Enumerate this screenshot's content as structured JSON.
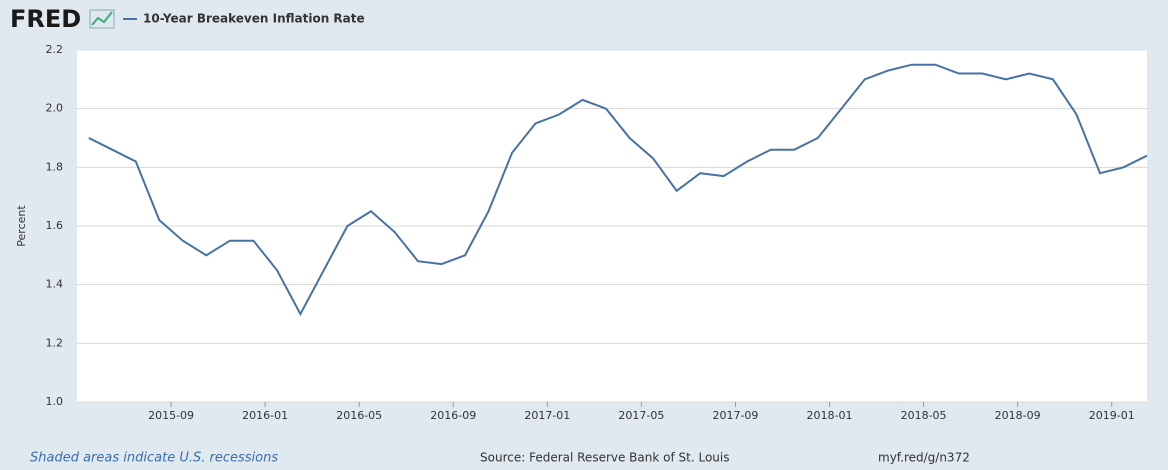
{
  "brand": "FRED",
  "chart_data": {
    "type": "line",
    "y_label": "Percent",
    "x": [
      "2015-05",
      "2015-06",
      "2015-07",
      "2015-08",
      "2015-09",
      "2015-10",
      "2015-11",
      "2015-12",
      "2016-01",
      "2016-02",
      "2016-03",
      "2016-04",
      "2016-05",
      "2016-06",
      "2016-07",
      "2016-08",
      "2016-09",
      "2016-10",
      "2016-11",
      "2016-12",
      "2017-01",
      "2017-02",
      "2017-03",
      "2017-04",
      "2017-05",
      "2017-06",
      "2017-07",
      "2017-08",
      "2017-09",
      "2017-10",
      "2017-11",
      "2017-12",
      "2018-01",
      "2018-02",
      "2018-03",
      "2018-04",
      "2018-05",
      "2018-06",
      "2018-07",
      "2018-08",
      "2018-09",
      "2018-10",
      "2018-11",
      "2018-12",
      "2019-01",
      "2019-02"
    ],
    "series": [
      {
        "name": "10-Year Breakeven Inflation Rate",
        "color": "#4572a7",
        "values": [
          1.9,
          1.86,
          1.82,
          1.62,
          1.55,
          1.5,
          1.55,
          1.55,
          1.45,
          1.3,
          1.45,
          1.6,
          1.65,
          1.58,
          1.48,
          1.47,
          1.5,
          1.65,
          1.85,
          1.95,
          1.98,
          2.03,
          2.0,
          1.9,
          1.83,
          1.72,
          1.78,
          1.77,
          1.82,
          1.86,
          1.86,
          1.9,
          2.0,
          2.1,
          2.13,
          2.15,
          2.15,
          2.12,
          2.12,
          2.1,
          2.12,
          2.1,
          1.98,
          1.78,
          1.8,
          1.84
        ]
      }
    ],
    "xlim": [
      "2015-05",
      "2019-02"
    ],
    "xticks": [
      "2015-09",
      "2016-01",
      "2016-05",
      "2016-09",
      "2017-01",
      "2017-05",
      "2017-09",
      "2018-01",
      "2018-05",
      "2018-09",
      "2019-01"
    ],
    "ylim": [
      1.0,
      2.2
    ],
    "yticks": [
      {
        "value": 1,
        "label": "1.0"
      },
      1.2,
      1.4,
      1.6,
      1.8,
      {
        "value": 2,
        "label": "2.0"
      },
      2.2
    ],
    "grid": true
  },
  "footer": {
    "recessions": "Shaded areas indicate U.S. recessions",
    "source": "Source: Federal Reserve Bank of St. Louis",
    "link": "myf.red/g/n372"
  }
}
